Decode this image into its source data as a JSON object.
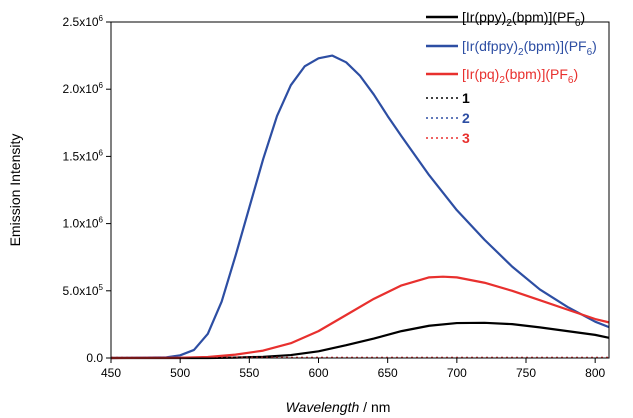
{
  "chart_data": {
    "type": "line",
    "xlabel_italic": "Wavelength",
    "xlabel_unit": " / nm",
    "ylabel": "Emission Intensity",
    "xlim": [
      450,
      810
    ],
    "ylim": [
      0,
      2500000
    ],
    "x_ticks": [
      450,
      500,
      550,
      600,
      650,
      700,
      750,
      800
    ],
    "y_ticks": [
      {
        "value": 0,
        "mant": "0.0",
        "exp": ""
      },
      {
        "value": 500000,
        "mant": "5.0x10",
        "exp": "5"
      },
      {
        "value": 1000000,
        "mant": "1.0x10",
        "exp": "6"
      },
      {
        "value": 1500000,
        "mant": "1.5x10",
        "exp": "6"
      },
      {
        "value": 2000000,
        "mant": "2.0x10",
        "exp": "6"
      },
      {
        "value": 2500000,
        "mant": "2.5x10",
        "exp": "6"
      }
    ],
    "grid": false,
    "legend_position": "top-right",
    "series": [
      {
        "name": "[Ir(ppy)2(bpm)](PF6)",
        "legend": [
          [
            "[Ir(ppy)",
            ""
          ],
          [
            "2",
            "sub"
          ],
          [
            "(bpm)](PF",
            ""
          ],
          [
            "6",
            "sub"
          ],
          [
            ")",
            ""
          ]
        ],
        "color": "#000000",
        "dash": false,
        "x": [
          450,
          480,
          500,
          520,
          540,
          560,
          580,
          600,
          620,
          640,
          660,
          680,
          700,
          720,
          740,
          760,
          780,
          800,
          810
        ],
        "y": [
          0,
          0,
          0,
          0,
          3000,
          9000,
          22000,
          50000,
          95000,
          145000,
          200000,
          240000,
          260000,
          262000,
          252000,
          228000,
          200000,
          172000,
          150000
        ]
      },
      {
        "name": "[Ir(dfppy)2(bpm)](PF6)",
        "legend": [
          [
            "[Ir(dfppy)",
            ""
          ],
          [
            "2",
            "sub"
          ],
          [
            "(bpm)](PF",
            ""
          ],
          [
            "6",
            "sub"
          ],
          [
            ")",
            ""
          ]
        ],
        "color": "#2d4ea3",
        "dash": false,
        "x": [
          450,
          490,
          500,
          510,
          520,
          530,
          540,
          550,
          560,
          570,
          580,
          590,
          600,
          610,
          620,
          630,
          640,
          650,
          660,
          680,
          700,
          720,
          740,
          760,
          780,
          800,
          810
        ],
        "y": [
          0,
          5000,
          20000,
          60000,
          180000,
          420000,
          760000,
          1120000,
          1480000,
          1800000,
          2030000,
          2170000,
          2230000,
          2250000,
          2200000,
          2100000,
          1960000,
          1800000,
          1650000,
          1360000,
          1100000,
          880000,
          680000,
          510000,
          380000,
          270000,
          230000
        ]
      },
      {
        "name": "[Ir(pq)2(bpm)](PF6)",
        "legend": [
          [
            "[Ir(pq)",
            ""
          ],
          [
            "2",
            "sub"
          ],
          [
            "(bpm)](PF",
            ""
          ],
          [
            "6",
            "sub"
          ],
          [
            ")",
            ""
          ]
        ],
        "color": "#e8302e",
        "dash": false,
        "x": [
          450,
          500,
          520,
          540,
          560,
          580,
          600,
          620,
          640,
          660,
          680,
          690,
          700,
          720,
          740,
          760,
          780,
          800,
          810
        ],
        "y": [
          0,
          2000,
          8000,
          25000,
          55000,
          110000,
          200000,
          320000,
          440000,
          540000,
          600000,
          605000,
          600000,
          560000,
          500000,
          430000,
          360000,
          290000,
          265000
        ]
      },
      {
        "name": "1",
        "color": "#000000",
        "dash": true,
        "x": [
          450,
          810
        ],
        "y": [
          2000,
          2000
        ]
      },
      {
        "name": "2",
        "color": "#2d4ea3",
        "dash": true,
        "x": [
          450,
          810
        ],
        "y": [
          3000,
          3000
        ]
      },
      {
        "name": "3",
        "color": "#e8302e",
        "dash": true,
        "x": [
          450,
          810
        ],
        "y": [
          4000,
          4000
        ]
      }
    ]
  }
}
